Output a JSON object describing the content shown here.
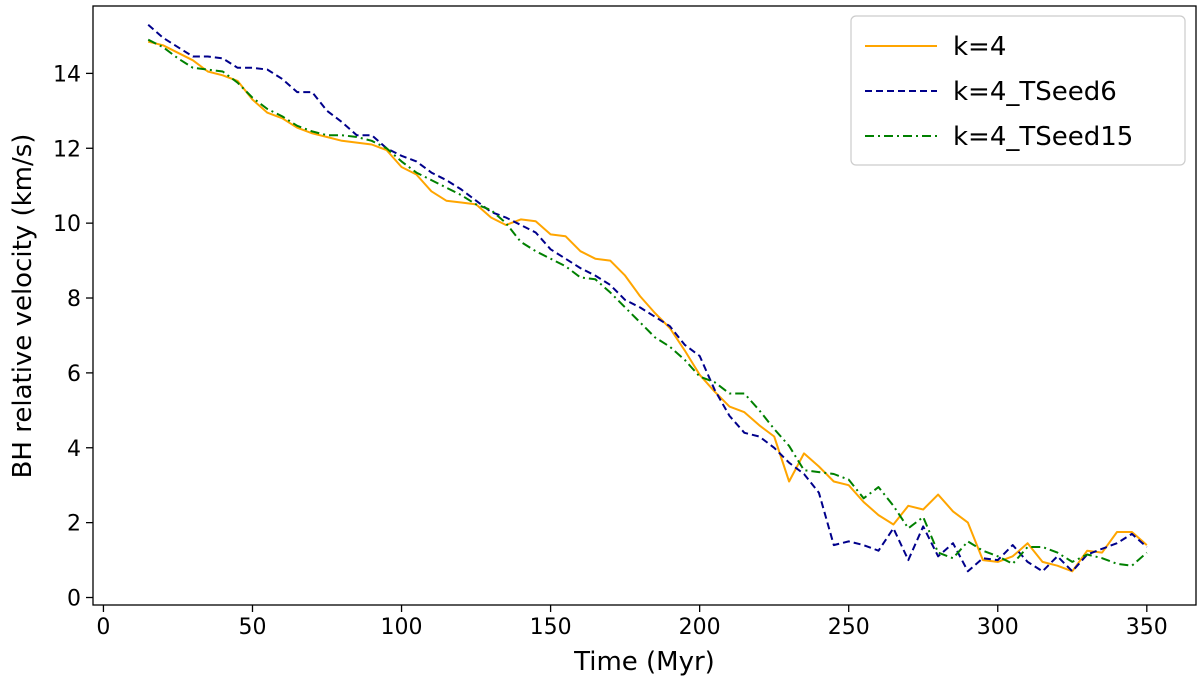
{
  "chart_data": {
    "type": "line",
    "title": "",
    "xlabel": "Time (Myr)",
    "ylabel": "BH relative velocity (km/s)",
    "xlim": [
      -3.5,
      366.5
    ],
    "ylim": [
      -0.2,
      15.8
    ],
    "xticks": [
      0,
      50,
      100,
      150,
      200,
      250,
      300,
      350
    ],
    "yticks": [
      0,
      2,
      4,
      6,
      8,
      10,
      12,
      14
    ],
    "grid": false,
    "legend_position": "top-right",
    "series": [
      {
        "name": "k=4",
        "color": "#ffa500",
        "style": "solid",
        "x": [
          15,
          20,
          25,
          30,
          35,
          40,
          45,
          50,
          55,
          60,
          65,
          70,
          75,
          80,
          85,
          90,
          95,
          100,
          105,
          110,
          115,
          120,
          125,
          130,
          135,
          140,
          145,
          150,
          155,
          160,
          165,
          170,
          175,
          180,
          185,
          190,
          195,
          200,
          205,
          210,
          215,
          220,
          225,
          230,
          235,
          240,
          245,
          250,
          255,
          260,
          265,
          270,
          275,
          280,
          285,
          290,
          295,
          300,
          305,
          310,
          315,
          320,
          325,
          330,
          335,
          340,
          345,
          350
        ],
        "y": [
          14.85,
          14.75,
          14.55,
          14.35,
          14.05,
          13.95,
          13.8,
          13.3,
          12.95,
          12.8,
          12.55,
          12.4,
          12.3,
          12.2,
          12.15,
          12.1,
          11.95,
          11.5,
          11.3,
          10.85,
          10.6,
          10.55,
          10.5,
          10.15,
          9.95,
          10.1,
          10.05,
          9.7,
          9.65,
          9.25,
          9.05,
          9.0,
          8.6,
          8.05,
          7.6,
          7.2,
          6.6,
          5.95,
          5.5,
          5.1,
          4.95,
          4.6,
          4.3,
          3.1,
          3.85,
          3.5,
          3.1,
          3.0,
          2.55,
          2.2,
          1.95,
          2.45,
          2.35,
          2.75,
          2.3,
          2.0,
          1.0,
          0.95,
          1.1,
          1.45,
          0.95,
          0.85,
          0.7,
          1.25,
          1.2,
          1.75,
          1.75,
          1.4
        ]
      },
      {
        "name": "k=4_TSeed6",
        "color": "#00008b",
        "style": "dashed",
        "x": [
          15,
          20,
          25,
          30,
          35,
          40,
          45,
          50,
          55,
          60,
          65,
          70,
          75,
          80,
          85,
          90,
          95,
          100,
          105,
          110,
          115,
          120,
          125,
          130,
          135,
          140,
          145,
          150,
          155,
          160,
          165,
          170,
          175,
          180,
          185,
          190,
          195,
          200,
          205,
          210,
          215,
          220,
          225,
          230,
          235,
          240,
          245,
          250,
          255,
          260,
          265,
          270,
          275,
          280,
          285,
          290,
          295,
          300,
          305,
          310,
          315,
          320,
          325,
          330,
          335,
          340,
          345,
          350
        ],
        "y": [
          15.3,
          14.95,
          14.7,
          14.45,
          14.45,
          14.4,
          14.15,
          14.15,
          14.1,
          13.85,
          13.5,
          13.5,
          13.0,
          12.7,
          12.35,
          12.35,
          12.0,
          11.8,
          11.65,
          11.35,
          11.15,
          10.9,
          10.6,
          10.3,
          10.15,
          9.95,
          9.75,
          9.3,
          9.05,
          8.8,
          8.6,
          8.35,
          7.95,
          7.75,
          7.5,
          7.25,
          6.75,
          6.45,
          5.55,
          4.85,
          4.4,
          4.3,
          4.0,
          3.6,
          3.3,
          2.8,
          1.4,
          1.5,
          1.4,
          1.25,
          1.85,
          1.0,
          1.9,
          1.1,
          1.45,
          0.7,
          1.05,
          1.0,
          1.4,
          0.95,
          0.7,
          1.1,
          0.7,
          1.15,
          1.3,
          1.45,
          1.7,
          1.35
        ]
      },
      {
        "name": "k=4_TSeed15",
        "color": "#008000",
        "style": "dashdot",
        "x": [
          15,
          20,
          25,
          30,
          35,
          40,
          45,
          50,
          55,
          60,
          65,
          70,
          75,
          80,
          85,
          90,
          95,
          100,
          105,
          110,
          115,
          120,
          125,
          130,
          135,
          140,
          145,
          150,
          155,
          160,
          165,
          170,
          175,
          180,
          185,
          190,
          195,
          200,
          205,
          210,
          215,
          220,
          225,
          230,
          235,
          240,
          245,
          250,
          255,
          260,
          265,
          270,
          275,
          280,
          285,
          290,
          295,
          300,
          305,
          310,
          315,
          320,
          325,
          330,
          335,
          340,
          345,
          350
        ],
        "y": [
          14.9,
          14.7,
          14.4,
          14.15,
          14.1,
          14.05,
          13.75,
          13.35,
          13.05,
          12.85,
          12.6,
          12.45,
          12.35,
          12.35,
          12.3,
          12.2,
          12.0,
          11.65,
          11.35,
          11.15,
          10.95,
          10.75,
          10.5,
          10.35,
          10.0,
          9.5,
          9.25,
          9.05,
          8.85,
          8.55,
          8.5,
          8.15,
          7.75,
          7.35,
          6.95,
          6.7,
          6.35,
          5.9,
          5.75,
          5.45,
          5.45,
          5.0,
          4.5,
          4.05,
          3.4,
          3.35,
          3.3,
          3.15,
          2.65,
          2.95,
          2.45,
          1.85,
          2.15,
          1.2,
          1.05,
          1.5,
          1.25,
          1.1,
          0.9,
          1.35,
          1.35,
          1.2,
          0.95,
          1.15,
          1.05,
          0.9,
          0.85,
          1.2
        ]
      }
    ]
  }
}
